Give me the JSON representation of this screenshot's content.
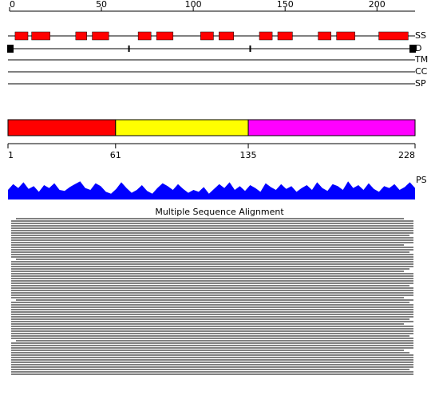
{
  "ruler": {
    "range": [
      0,
      219
    ],
    "ticks": [
      0,
      50,
      100,
      150,
      200
    ]
  },
  "tracks": [
    "SS",
    "D",
    "TM",
    "CC",
    "SP"
  ],
  "secondary_structure": [
    [
      3,
      10
    ],
    [
      12,
      22
    ],
    [
      36,
      42
    ],
    [
      45,
      54
    ],
    [
      70,
      77
    ],
    [
      80,
      89
    ],
    [
      104,
      111
    ],
    [
      114,
      122
    ],
    [
      136,
      143
    ],
    [
      146,
      154
    ],
    [
      168,
      175
    ],
    [
      178,
      188
    ],
    [
      201,
      217
    ]
  ],
  "disorder": {
    "blocks": [
      0,
      219
    ],
    "ticks": [
      65,
      131
    ]
  },
  "domains": {
    "boundaries": [
      1,
      61,
      135,
      228
    ],
    "colors": [
      "#ff0000",
      "#ffff00",
      "#ff00ff"
    ]
  },
  "ps": {
    "label": "PS",
    "ylim": [
      0,
      1
    ],
    "color": "#0000ff",
    "values": [
      0.5,
      0.8,
      0.6,
      0.9,
      0.55,
      0.7,
      0.4,
      0.75,
      0.6,
      0.85,
      0.5,
      0.45,
      0.65,
      0.8,
      0.95,
      0.6,
      0.5,
      0.85,
      0.7,
      0.4,
      0.3,
      0.55,
      0.9,
      0.6,
      0.35,
      0.5,
      0.75,
      0.45,
      0.3,
      0.6,
      0.85,
      0.7,
      0.5,
      0.8,
      0.55,
      0.35,
      0.5,
      0.4,
      0.65,
      0.3,
      0.55,
      0.8,
      0.6,
      0.9,
      0.5,
      0.7,
      0.45,
      0.75,
      0.6,
      0.4,
      0.85,
      0.65,
      0.5,
      0.8,
      0.55,
      0.7,
      0.4,
      0.6,
      0.75,
      0.5,
      0.9,
      0.6,
      0.45,
      0.8,
      0.7,
      0.5,
      0.95,
      0.6,
      0.75,
      0.5,
      0.85,
      0.55,
      0.4,
      0.7,
      0.6,
      0.8,
      0.5,
      0.65,
      0.9,
      0.6
    ]
  },
  "msa": {
    "title": "Multiple Sequence Alignment"
  }
}
